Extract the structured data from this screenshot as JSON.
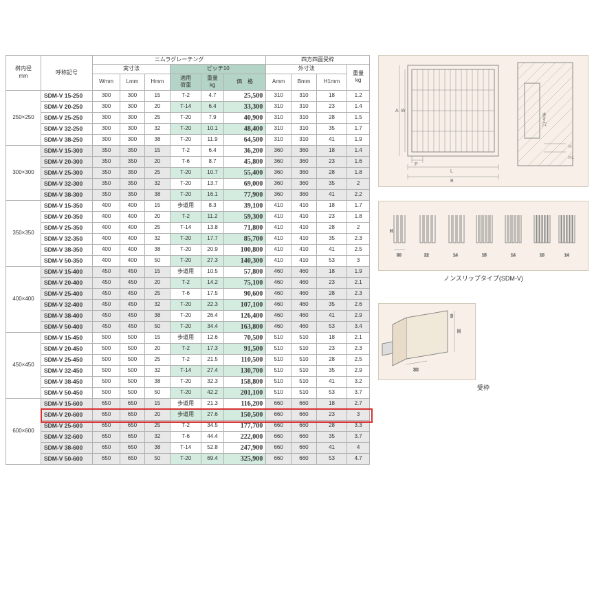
{
  "headers": {
    "size": "桝内径\nmm",
    "ref": "呼称記号",
    "grating": "ニムラグレーチング",
    "frame": "四方四面受枠",
    "dim": "実寸法",
    "pitch": "ピッチ10",
    "outer": "外寸法",
    "wt": "重量\nkg",
    "w": "Wmm",
    "l": "Lmm",
    "h": "Hmm",
    "load": "適用\n荷重",
    "kg": "重量\nkg",
    "price": "価　格",
    "a": "Amm",
    "b": "Bmm",
    "h1": "H1mm"
  },
  "groups": [
    {
      "size": "250×250",
      "rows": [
        [
          "SDM-V 15-250",
          300,
          300,
          15,
          "T-2",
          4.7,
          "25,500",
          310,
          310,
          18,
          1.2,
          0
        ],
        [
          "SDM-V 20-250",
          300,
          300,
          20,
          "T-14",
          6.4,
          "33,300",
          310,
          310,
          23,
          1.4,
          1
        ],
        [
          "SDM-V 25-250",
          300,
          300,
          25,
          "T-20",
          7.9,
          "40,900",
          310,
          310,
          28,
          1.5,
          0
        ],
        [
          "SDM-V 32-250",
          300,
          300,
          32,
          "T-20",
          10.1,
          "48,400",
          310,
          310,
          35,
          1.7,
          1
        ],
        [
          "SDM-V 38-250",
          300,
          300,
          38,
          "T-20",
          11.9,
          "64,500",
          310,
          310,
          41,
          1.9,
          0
        ]
      ]
    },
    {
      "size": "300×300",
      "gray": true,
      "rows": [
        [
          "SDM-V 15-300",
          350,
          350,
          15,
          "T-2",
          6.4,
          "36,200",
          360,
          360,
          18,
          1.4,
          0
        ],
        [
          "SDM-V 20-300",
          350,
          350,
          20,
          "T-6",
          8.7,
          "45,800",
          360,
          360,
          23,
          1.6,
          0
        ],
        [
          "SDM-V 25-300",
          350,
          350,
          25,
          "T-20",
          10.7,
          "55,400",
          360,
          360,
          28,
          1.8,
          1
        ],
        [
          "SDM-V 32-300",
          350,
          350,
          32,
          "T-20",
          13.7,
          "69,000",
          360,
          360,
          35,
          2.0,
          0
        ],
        [
          "SDM-V 38-300",
          350,
          350,
          38,
          "T-20",
          16.1,
          "77,900",
          360,
          360,
          41,
          2.2,
          1
        ]
      ]
    },
    {
      "size": "350×350",
      "rows": [
        [
          "SDM-V 15-350",
          400,
          400,
          15,
          "歩道用",
          8.3,
          "39,100",
          410,
          410,
          18,
          1.7,
          0
        ],
        [
          "SDM-V 20-350",
          400,
          400,
          20,
          "T-2",
          11.2,
          "59,300",
          410,
          410,
          23,
          1.8,
          1
        ],
        [
          "SDM-V 25-350",
          400,
          400,
          25,
          "T-14",
          13.8,
          "71,800",
          410,
          410,
          28,
          2.0,
          0
        ],
        [
          "SDM-V 32-350",
          400,
          400,
          32,
          "T-20",
          17.7,
          "85,700",
          410,
          410,
          35,
          2.3,
          1
        ],
        [
          "SDM-V 38-350",
          400,
          400,
          38,
          "T-20",
          20.9,
          "100,800",
          410,
          410,
          41,
          2.5,
          0
        ],
        [
          "SDM-V 50-350",
          400,
          400,
          50,
          "T-20",
          27.3,
          "140,300",
          410,
          410,
          53,
          3.0,
          1
        ]
      ]
    },
    {
      "size": "400×400",
      "gray": true,
      "rows": [
        [
          "SDM-V 15-400",
          450,
          450,
          15,
          "歩道用",
          10.5,
          "57,800",
          460,
          460,
          18,
          1.9,
          0
        ],
        [
          "SDM-V 20-400",
          450,
          450,
          20,
          "T-2",
          14.2,
          "75,100",
          460,
          460,
          23,
          2.1,
          1
        ],
        [
          "SDM-V 25-400",
          450,
          450,
          25,
          "T-6",
          17.5,
          "90,600",
          460,
          460,
          28,
          2.3,
          0
        ],
        [
          "SDM-V 32-400",
          450,
          450,
          32,
          "T-20",
          22.3,
          "107,100",
          460,
          460,
          35,
          2.6,
          1
        ],
        [
          "SDM-V 38-400",
          450,
          450,
          38,
          "T-20",
          26.4,
          "126,400",
          460,
          460,
          41,
          2.9,
          0
        ],
        [
          "SDM-V 50-400",
          450,
          450,
          50,
          "T-20",
          34.4,
          "163,800",
          460,
          460,
          53,
          3.4,
          1
        ]
      ]
    },
    {
      "size": "450×450",
      "rows": [
        [
          "SDM-V 15-450",
          500,
          500,
          15,
          "歩道用",
          12.6,
          "70,500",
          510,
          510,
          18,
          2.1,
          0
        ],
        [
          "SDM-V 20-450",
          500,
          500,
          20,
          "T-2",
          17.3,
          "91,500",
          510,
          510,
          23,
          2.3,
          1
        ],
        [
          "SDM-V 25-450",
          500,
          500,
          25,
          "T-2",
          21.5,
          "110,500",
          510,
          510,
          28,
          2.5,
          0
        ],
        [
          "SDM-V 32-450",
          500,
          500,
          32,
          "T-14",
          27.4,
          "130,700",
          510,
          510,
          35,
          2.9,
          1
        ],
        [
          "SDM-V 38-450",
          500,
          500,
          38,
          "T-20",
          32.3,
          "158,800",
          510,
          510,
          41,
          3.2,
          0
        ],
        [
          "SDM-V 50-450",
          500,
          500,
          50,
          "T-20",
          42.2,
          "201,100",
          510,
          510,
          53,
          3.7,
          1
        ]
      ]
    },
    {
      "size": "600×600",
      "gray": true,
      "rows": [
        [
          "SDM-V 15-600",
          650,
          650,
          15,
          "歩道用",
          21.3,
          "116,200",
          660,
          660,
          18,
          2.7,
          0
        ],
        [
          "SDM-V 20-600",
          650,
          650,
          20,
          "歩道用",
          27.6,
          "150,500",
          660,
          660,
          23,
          3.0,
          1,
          "hl"
        ],
        [
          "SDM-V 25-600",
          650,
          650,
          25,
          "T-2",
          34.5,
          "177,700",
          660,
          660,
          28,
          3.3,
          0
        ],
        [
          "SDM-V 32-600",
          650,
          650,
          32,
          "T-6",
          44.4,
          "222,000",
          660,
          660,
          35,
          3.7,
          0
        ],
        [
          "SDM-V 38-600",
          650,
          650,
          38,
          "T-14",
          52.8,
          "247,900",
          660,
          660,
          41,
          4.0,
          0
        ],
        [
          "SDM-V 50-600",
          650,
          650,
          50,
          "T-20",
          69.4,
          "325,900",
          660,
          660,
          53,
          4.7,
          1
        ]
      ]
    }
  ],
  "captions": {
    "c2": "ノンスリップタイプ(SDM-V)",
    "c3": "受枠"
  },
  "colors": {
    "mint": "#d4ebe0",
    "mintHdr": "#b5d4c8",
    "gray": "#e8e8e8",
    "hl": "#d83030",
    "diagBg": "#f8f0e8"
  }
}
